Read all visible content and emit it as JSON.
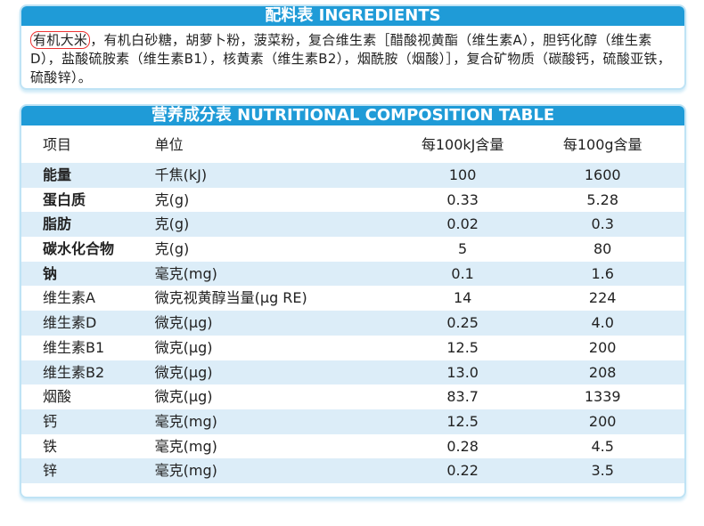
{
  "ingredients": {
    "title": "配料表 INGREDIENTS",
    "highlight": "有机大米",
    "text": "，有机白砂糖，胡萝卜粉，菠菜粉，复合维生素［醋酸视黄酯（维生素A），胆钙化醇（维生素D），盐酸硫胺素（维生素B1），核黄素（维生素B2），烟酰胺（烟酸）］，复合矿物质（碳酸钙，硫酸亚铁，硫酸锌）。"
  },
  "table": {
    "title": "营养成分表 NUTRITIONAL COMPOSITION TABLE",
    "header": [
      "项目",
      "单位",
      "每100kJ含量",
      "每100g含量"
    ],
    "rows": [
      [
        "能量",
        "千焦(kJ)",
        "100",
        "1600"
      ],
      [
        "蛋白质",
        "克(g)",
        "0.33",
        "5.28"
      ],
      [
        "脂肪",
        "克(g)",
        "0.02",
        "0.3"
      ],
      [
        "碳水化合物",
        "克(g)",
        "5",
        "80"
      ],
      [
        "钠",
        "毫克(mg)",
        "0.1",
        "1.6"
      ],
      [
        "维生素A",
        "微克视黄醇当量(μg RE)",
        "14",
        "224"
      ],
      [
        "维生素D",
        "微克(μg)",
        "0.25",
        "4.0"
      ],
      [
        "维生素B1",
        "微克(μg)",
        "12.5",
        "200"
      ],
      [
        "维生素B2",
        "微克(μg)",
        "13.0",
        "208"
      ],
      [
        "烟酸",
        "微克(μg)",
        "83.7",
        "1339"
      ],
      [
        "钙",
        "毫克(mg)",
        "12.5",
        "200"
      ],
      [
        "铁",
        "毫克(mg)",
        "0.28",
        "4.5"
      ],
      [
        "锌",
        "毫克(mg)",
        "0.22",
        "3.5"
      ]
    ]
  }
}
